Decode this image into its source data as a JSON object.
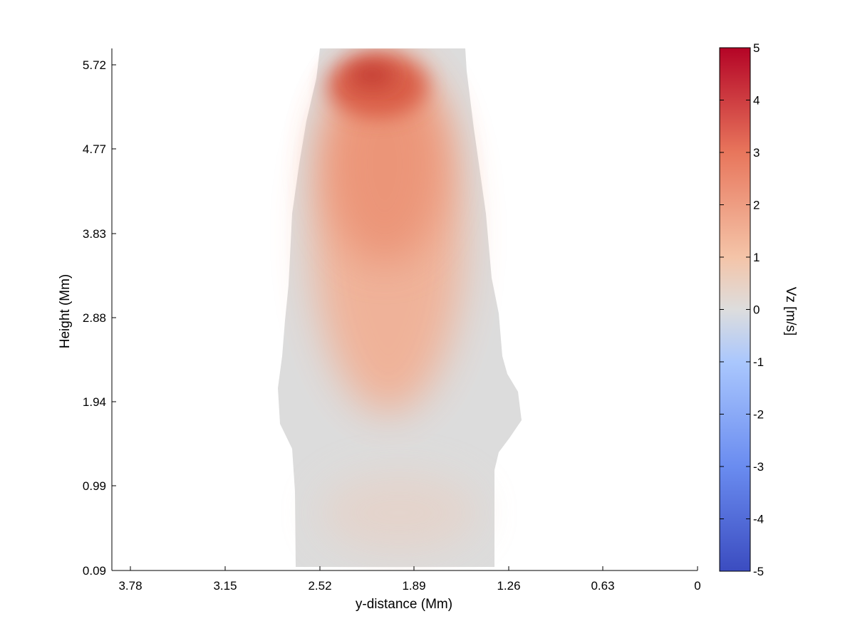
{
  "chart_data": {
    "type": "heatmap",
    "title": "",
    "xlabel": "y-distance (Mm)",
    "ylabel": "Height (Mm)",
    "x_ticks": [
      "3.78",
      "3.15",
      "2.52",
      "1.89",
      "1.26",
      "0.63",
      "0"
    ],
    "y_ticks": [
      "0.09",
      "0.99",
      "1.94",
      "2.88",
      "3.83",
      "4.77",
      "5.72"
    ],
    "xlim": [
      3.9,
      0
    ],
    "ylim": [
      0.09,
      5.9
    ],
    "x_axis_reversed": true,
    "colorbar": {
      "label": "Vz [m/s]",
      "ticks": [
        "5",
        "4",
        "3",
        "2",
        "1",
        "0",
        "-1",
        "-2",
        "-3",
        "-4",
        "-5"
      ],
      "range": [
        -5,
        5
      ],
      "colormap": "coolwarm",
      "colors": {
        "min": "#3b4cc0",
        "mid": "#dddddd",
        "max": "#b40426"
      }
    },
    "field": {
      "background_value": 0,
      "background_color": "#dcdcdc",
      "region_y_range": [
        1.25,
        2.6
      ],
      "peak": {
        "y": 2.2,
        "height": 5.6,
        "vz": 4.8
      },
      "upper_plume_vz_range": [
        1.0,
        4.8
      ],
      "lower_region_vz": 0.4
    }
  }
}
